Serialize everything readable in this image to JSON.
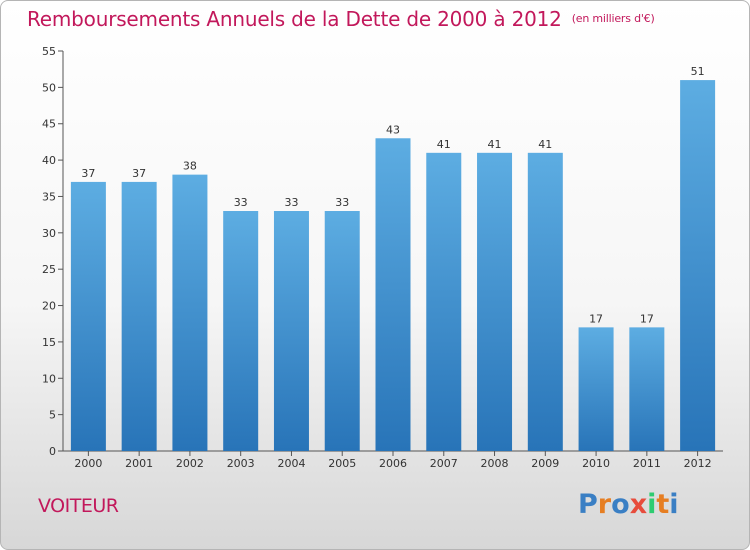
{
  "header": {
    "title": "Remboursements Annuels de la Dette de 2000 à 2012",
    "unit": "(en milliers d'€)"
  },
  "footer": {
    "commune": "VOITEUR",
    "logo": "Proxiti",
    "logo_colors": [
      "#3a7fc4",
      "#e67e22",
      "#3a7fc4",
      "#e74c3c",
      "#2ecc71",
      "#e67e22",
      "#3a7fc4"
    ]
  },
  "chart_data": {
    "type": "bar",
    "title": "Remboursements Annuels de la Dette de 2000 à 2012",
    "unit_note": "(en milliers d'€)",
    "categories": [
      "2000",
      "2001",
      "2002",
      "2003",
      "2004",
      "2005",
      "2006",
      "2007",
      "2008",
      "2009",
      "2010",
      "2011",
      "2012"
    ],
    "values": [
      37,
      37,
      38,
      33,
      33,
      33,
      43,
      41,
      41,
      41,
      17,
      17,
      51
    ],
    "xlabel": "",
    "ylabel": "",
    "ylim": [
      0,
      55
    ],
    "yticks": [
      0,
      5,
      10,
      15,
      20,
      25,
      30,
      35,
      40,
      45,
      50,
      55
    ],
    "grid": false,
    "bar_color_top": "#5dade2",
    "bar_color_bottom": "#2874b8"
  }
}
